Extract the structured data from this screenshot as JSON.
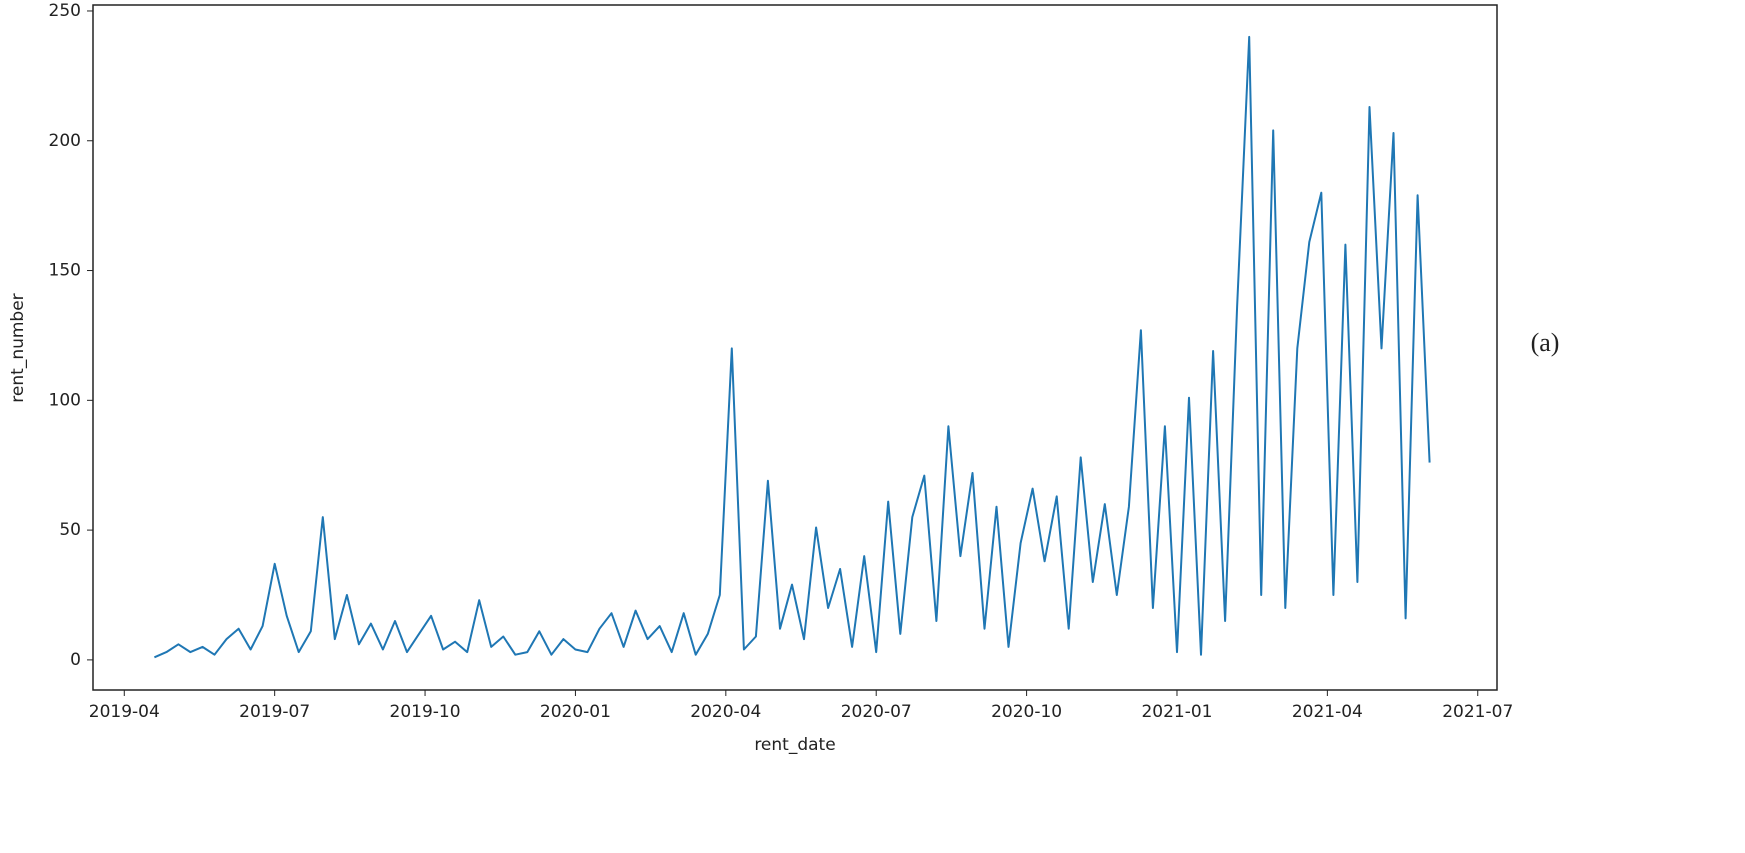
{
  "chart_data": {
    "type": "line",
    "x_label": "rent_date",
    "y_label": "rent_number",
    "panel_label": "(a)",
    "x": [
      2019.3,
      2019.32,
      2019.34,
      2019.36,
      2019.38,
      2019.4,
      2019.42,
      2019.44,
      2019.46,
      2019.48,
      2019.5,
      2019.52,
      2019.54,
      2019.56,
      2019.58,
      2019.6,
      2019.62,
      2019.64,
      2019.66,
      2019.68,
      2019.7,
      2019.72,
      2019.74,
      2019.76,
      2019.78,
      2019.8,
      2019.82,
      2019.84,
      2019.86,
      2019.88,
      2019.9,
      2019.92,
      2019.94,
      2019.96,
      2019.98,
      2020.0,
      2020.02,
      2020.04,
      2020.06,
      2020.08,
      2020.1,
      2020.12,
      2020.14,
      2020.16,
      2020.18,
      2020.2,
      2020.22,
      2020.24,
      2020.26,
      2020.28,
      2020.3,
      2020.32,
      2020.34,
      2020.36,
      2020.38,
      2020.4,
      2020.42,
      2020.44,
      2020.46,
      2020.48,
      2020.5,
      2020.52,
      2020.54,
      2020.56,
      2020.58,
      2020.6,
      2020.62,
      2020.64,
      2020.66,
      2020.68,
      2020.7,
      2020.72,
      2020.74,
      2020.76,
      2020.78,
      2020.8,
      2020.82,
      2020.84,
      2020.86,
      2020.88,
      2020.9,
      2020.92,
      2020.94,
      2020.96,
      2020.98,
      2021.0,
      2021.02,
      2021.04,
      2021.06,
      2021.08,
      2021.1,
      2021.12,
      2021.14,
      2021.16,
      2021.18,
      2021.2,
      2021.22,
      2021.24,
      2021.26,
      2021.28,
      2021.3,
      2021.32,
      2021.34,
      2021.36,
      2021.38,
      2021.4,
      2021.42
    ],
    "series": [
      {
        "color": "#1f77b4",
        "values": [
          1,
          3,
          6,
          3,
          5,
          2,
          8,
          12,
          4,
          13,
          37,
          17,
          3,
          11,
          55,
          8,
          25,
          6,
          14,
          4,
          15,
          3,
          10,
          17,
          4,
          7,
          3,
          23,
          5,
          9,
          2,
          3,
          11,
          2,
          8,
          4,
          3,
          12,
          18,
          5,
          19,
          8,
          13,
          3,
          18,
          2,
          10,
          25,
          120,
          4,
          9,
          69,
          12,
          29,
          8,
          51,
          20,
          35,
          5,
          40,
          3,
          61,
          10,
          55,
          71,
          15,
          90,
          40,
          72,
          12,
          59,
          5,
          45,
          66,
          38,
          63,
          12,
          78,
          30,
          60,
          25,
          59,
          127,
          20,
          90,
          3,
          101,
          2,
          119,
          15,
          136,
          240,
          25,
          204,
          20,
          120,
          161,
          180,
          25,
          160,
          30,
          213,
          120,
          203,
          16,
          179,
          76
        ]
      }
    ],
    "xlim": [
      2019.198,
      2021.532
    ],
    "ylim": [
      -11.6,
      252.3
    ],
    "xticks": [
      {
        "value": 2019.25,
        "label": "2019-04"
      },
      {
        "value": 2019.5,
        "label": "2019-07"
      },
      {
        "value": 2019.75,
        "label": "2019-10"
      },
      {
        "value": 2020.0,
        "label": "2020-01"
      },
      {
        "value": 2020.25,
        "label": "2020-04"
      },
      {
        "value": 2020.5,
        "label": "2020-07"
      },
      {
        "value": 2020.75,
        "label": "2020-10"
      },
      {
        "value": 2021.0,
        "label": "2021-01"
      },
      {
        "value": 2021.25,
        "label": "2021-04"
      },
      {
        "value": 2021.5,
        "label": "2021-07"
      }
    ],
    "yticks": [
      0,
      50,
      100,
      150,
      200,
      250
    ]
  }
}
